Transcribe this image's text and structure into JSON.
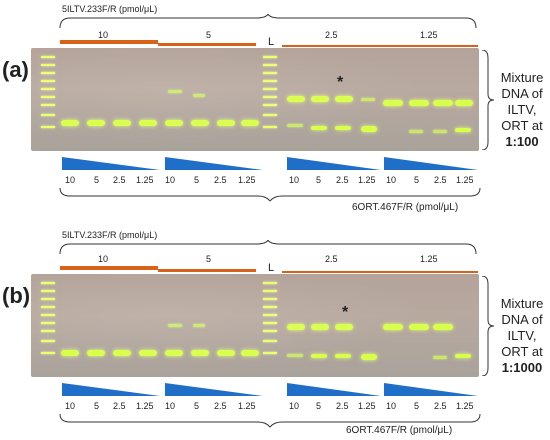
{
  "panels": [
    {
      "id": "a",
      "label": "(a)",
      "primer_top": "5ILTV.233F/R (pmol/μL)",
      "top_concentrations": [
        "10",
        "5",
        "2.5",
        "1.25"
      ],
      "ladder_label": "L",
      "star": "*",
      "bottom_lane_labels": [
        "10",
        "5",
        "2.5",
        "1.25"
      ],
      "primer_bottom": "6ORT.467F/R (pmol/μL)",
      "side_text": {
        "line1": "Mixture",
        "line2": "DNA of",
        "line3": "ILTV,",
        "line4": "ORT at",
        "ratio": "1:100"
      }
    },
    {
      "id": "b",
      "label": "(b)",
      "primer_top": "5ILTV.233F/R (pmol/μL)",
      "top_concentrations": [
        "10",
        "5",
        "2.5",
        "1.25"
      ],
      "ladder_label": "L",
      "star": "*",
      "bottom_lane_labels": [
        "10",
        "5",
        "2.5",
        "1.25"
      ],
      "primer_bottom": "6ORT.467F/R (pmol/μL)",
      "side_text": {
        "line1": "Mixture",
        "line2": "DNA of",
        "line3": "ILTV,",
        "line4": "ORT at",
        "ratio": "1:1000"
      }
    }
  ],
  "colors": {
    "bar": "#d9621b",
    "triangle": "#1f6fc8",
    "band": "#d8ff4a",
    "gel": "#b3a39a"
  }
}
